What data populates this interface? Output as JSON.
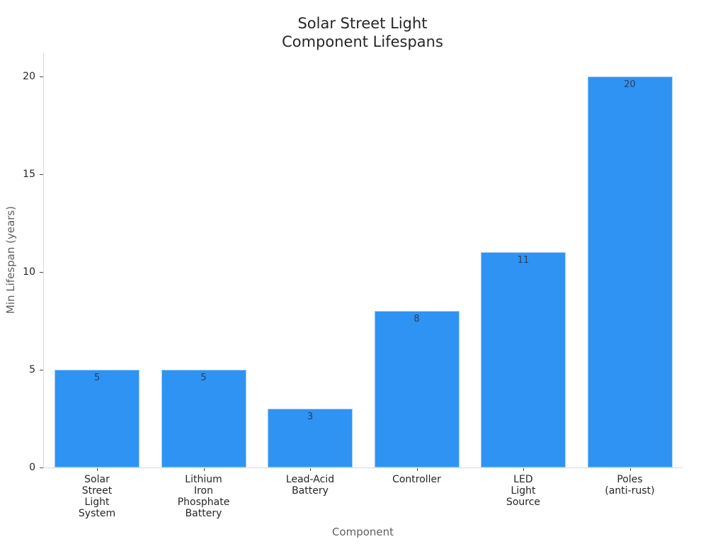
{
  "chart_data": {
    "type": "bar",
    "title": "Solar Street Light\nComponent Lifespans",
    "xlabel": "Component",
    "ylabel": "Min Lifespan (years)",
    "categories": [
      "Solar\nStreet\nLight\nSystem",
      "Lithium\nIron\nPhosphate\nBattery",
      "Lead-Acid\nBattery",
      "Controller",
      "LED\nLight\nSource",
      "Poles\n(anti-rust)"
    ],
    "values": [
      5,
      5,
      3,
      8,
      11,
      20
    ],
    "bar_labels": [
      "5",
      "5",
      "3",
      "8",
      "11",
      "20"
    ],
    "yticks": [
      0,
      5,
      10,
      15,
      20
    ],
    "ylim": [
      0,
      21.2
    ],
    "grid": false,
    "legend": false,
    "colors": {
      "bar_fill": "#2E93F2",
      "bar_edge": "#9CCBF7",
      "bar_value_text": "#2A3F5F",
      "title_text": "#262626",
      "tick_text": "#262626",
      "axis_label_text": "#5F5F5F",
      "spine": "#D8D8D8",
      "tick_mark": "#4D4D4D",
      "background": "#FFFFFF"
    }
  }
}
